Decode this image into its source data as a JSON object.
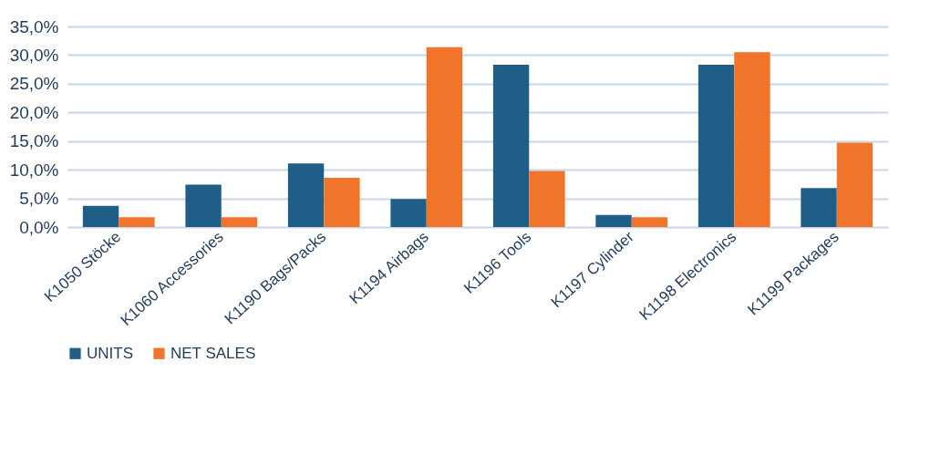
{
  "chart_data": {
    "type": "bar",
    "categories": [
      "K1050 Stöcke",
      "K1060 Accessories",
      "K1190 Bags/Packs",
      "K1194 Airbags",
      "K1196 Tools",
      "K1197 Cylinder",
      "K1198 Electronics",
      "K1199 Packages"
    ],
    "series": [
      {
        "name": "UNITS",
        "color": "#1f5f87",
        "values": [
          3.7,
          7.4,
          11.1,
          4.9,
          28.3,
          2.1,
          28.3,
          6.8
        ]
      },
      {
        "name": "NET SALES",
        "color": "#f0742a",
        "values": [
          1.7,
          1.7,
          8.6,
          31.4,
          9.8,
          1.7,
          30.5,
          14.7
        ]
      }
    ],
    "ylim": [
      0,
      35
    ],
    "yticks": [
      {
        "value": 0,
        "label": "0,0%"
      },
      {
        "value": 5,
        "label": "5,0%"
      },
      {
        "value": 10,
        "label": "10,0%"
      },
      {
        "value": 15,
        "label": "15,0%"
      },
      {
        "value": 20,
        "label": "20,0%"
      },
      {
        "value": 25,
        "label": "25,0%"
      },
      {
        "value": 30,
        "label": "30,0%"
      },
      {
        "value": 35,
        "label": "35,0%"
      }
    ],
    "grid": "y",
    "legend": "bottom"
  }
}
